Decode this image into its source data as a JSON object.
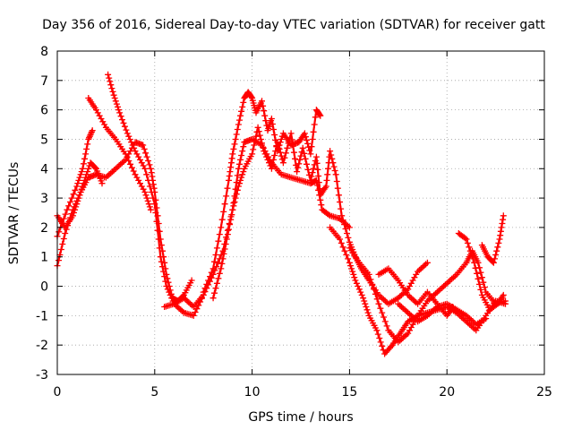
{
  "chart_data": {
    "type": "scatter",
    "title": "Day 356 of 2016, Sidereal Day-to-day VTEC variation (SDTVAR) for receiver gatt",
    "xlabel": "GPS time / hours",
    "ylabel": "SDTVAR / TECUs",
    "xlim": [
      0,
      25
    ],
    "ylim": [
      -3,
      8
    ],
    "xticks": [
      0,
      5,
      10,
      15,
      20,
      25
    ],
    "yticks": [
      -3,
      -2,
      -1,
      0,
      1,
      2,
      3,
      4,
      5,
      6,
      7,
      8
    ],
    "grid": true,
    "marker": "plus",
    "color": "#ff0000",
    "series": [
      {
        "name": "track-1",
        "points": [
          [
            0.0,
            1.7
          ],
          [
            0.5,
            2.6
          ],
          [
            1.0,
            3.4
          ],
          [
            1.3,
            4.0
          ],
          [
            1.6,
            5.0
          ],
          [
            1.8,
            5.3
          ]
        ]
      },
      {
        "name": "track-2",
        "points": [
          [
            1.6,
            6.4
          ],
          [
            2.0,
            6.0
          ],
          [
            2.5,
            5.4
          ],
          [
            3.0,
            5.0
          ],
          [
            3.5,
            4.5
          ],
          [
            4.0,
            3.8
          ],
          [
            4.5,
            3.2
          ],
          [
            4.8,
            2.6
          ]
        ]
      },
      {
        "name": "track-3",
        "points": [
          [
            2.6,
            7.2
          ],
          [
            2.9,
            6.5
          ],
          [
            3.2,
            5.9
          ],
          [
            3.6,
            5.2
          ],
          [
            4.0,
            4.6
          ],
          [
            4.5,
            4.0
          ],
          [
            5.0,
            2.8
          ],
          [
            5.3,
            1.0
          ],
          [
            5.6,
            0.0
          ],
          [
            6.0,
            -0.6
          ],
          [
            6.5,
            -0.9
          ],
          [
            7.0,
            -1.0
          ],
          [
            7.5,
            -0.3
          ]
        ]
      },
      {
        "name": "track-4",
        "points": [
          [
            0.0,
            0.7
          ],
          [
            0.4,
            1.8
          ],
          [
            0.8,
            2.6
          ],
          [
            1.2,
            3.2
          ],
          [
            1.6,
            3.7
          ],
          [
            2.0,
            3.8
          ],
          [
            2.5,
            3.7
          ],
          [
            3.0,
            4.0
          ],
          [
            3.5,
            4.3
          ],
          [
            4.0,
            4.9
          ],
          [
            4.4,
            4.8
          ],
          [
            4.8,
            4.0
          ],
          [
            5.0,
            3.2
          ],
          [
            5.3,
            1.6
          ],
          [
            5.6,
            0.4
          ],
          [
            5.9,
            -0.4
          ],
          [
            6.2,
            -0.5
          ],
          [
            6.5,
            -0.3
          ],
          [
            6.9,
            0.2
          ]
        ]
      },
      {
        "name": "track-5",
        "points": [
          [
            0.0,
            2.4
          ],
          [
            0.4,
            2.0
          ],
          [
            0.8,
            2.4
          ],
          [
            1.1,
            3.0
          ],
          [
            1.4,
            3.6
          ],
          [
            1.7,
            4.2
          ],
          [
            2.0,
            4.0
          ],
          [
            2.3,
            3.5
          ]
        ]
      },
      {
        "name": "track-6",
        "points": [
          [
            5.5,
            -0.7
          ],
          [
            6.0,
            -0.6
          ],
          [
            6.5,
            -0.4
          ],
          [
            7.0,
            -0.7
          ],
          [
            7.5,
            -0.3
          ],
          [
            8.0,
            0.4
          ],
          [
            8.5,
            1.2
          ],
          [
            9.0,
            2.6
          ],
          [
            9.3,
            4.0
          ],
          [
            9.6,
            4.9
          ],
          [
            10.0,
            5.0
          ],
          [
            10.5,
            4.8
          ],
          [
            11.0,
            4.2
          ],
          [
            11.5,
            3.8
          ],
          [
            12.0,
            3.7
          ],
          [
            12.5,
            3.6
          ],
          [
            13.0,
            3.5
          ],
          [
            13.3,
            3.6
          ],
          [
            13.6,
            2.6
          ],
          [
            14.0,
            2.4
          ],
          [
            14.5,
            2.3
          ],
          [
            15.0,
            2.0
          ]
        ]
      },
      {
        "name": "track-7",
        "points": [
          [
            7.5,
            -0.2
          ],
          [
            8.0,
            0.6
          ],
          [
            8.4,
            2.0
          ],
          [
            8.8,
            3.6
          ],
          [
            9.0,
            4.5
          ],
          [
            9.3,
            5.5
          ],
          [
            9.6,
            6.4
          ],
          [
            9.8,
            6.6
          ],
          [
            10.0,
            6.4
          ],
          [
            10.2,
            5.9
          ],
          [
            10.5,
            6.3
          ],
          [
            10.8,
            5.3
          ],
          [
            11.0,
            5.7
          ],
          [
            11.3,
            4.6
          ],
          [
            11.6,
            5.2
          ],
          [
            12.0,
            4.8
          ],
          [
            12.4,
            4.9
          ],
          [
            12.7,
            5.2
          ],
          [
            13.0,
            4.5
          ],
          [
            13.3,
            6.0
          ],
          [
            13.5,
            5.8
          ]
        ]
      },
      {
        "name": "track-8",
        "points": [
          [
            8.0,
            -0.4
          ],
          [
            8.4,
            0.6
          ],
          [
            8.7,
            1.6
          ],
          [
            9.0,
            2.6
          ],
          [
            9.3,
            3.4
          ],
          [
            9.6,
            4.0
          ],
          [
            10.0,
            4.5
          ],
          [
            10.3,
            5.4
          ],
          [
            10.6,
            4.6
          ],
          [
            11.0,
            4.0
          ],
          [
            11.3,
            4.9
          ],
          [
            11.6,
            4.2
          ],
          [
            12.0,
            5.2
          ],
          [
            12.3,
            3.9
          ],
          [
            12.6,
            4.7
          ],
          [
            13.0,
            3.6
          ],
          [
            13.3,
            4.4
          ],
          [
            13.5,
            3.1
          ],
          [
            13.8,
            3.4
          ],
          [
            14.0,
            4.6
          ],
          [
            14.3,
            3.8
          ],
          [
            14.6,
            2.4
          ],
          [
            15.0,
            1.5
          ],
          [
            15.3,
            1.0
          ],
          [
            15.6,
            0.6
          ],
          [
            16.0,
            0.2
          ],
          [
            16.5,
            -0.3
          ],
          [
            17.0,
            -0.6
          ],
          [
            17.5,
            -0.4
          ],
          [
            18.0,
            -0.1
          ],
          [
            18.5,
            0.5
          ],
          [
            19.0,
            0.8
          ]
        ]
      },
      {
        "name": "track-9",
        "points": [
          [
            14.0,
            2.0
          ],
          [
            14.5,
            1.6
          ],
          [
            15.0,
            0.8
          ],
          [
            15.3,
            0.2
          ],
          [
            15.7,
            -0.4
          ],
          [
            16.0,
            -1.0
          ],
          [
            16.4,
            -1.5
          ],
          [
            16.8,
            -2.3
          ],
          [
            17.2,
            -2.0
          ],
          [
            17.6,
            -1.6
          ],
          [
            18.0,
            -1.2
          ],
          [
            18.5,
            -1.0
          ],
          [
            19.0,
            -0.9
          ],
          [
            19.5,
            -0.8
          ],
          [
            20.0,
            -0.7
          ],
          [
            20.5,
            -0.9
          ],
          [
            21.0,
            -1.2
          ],
          [
            21.5,
            -1.5
          ],
          [
            22.0,
            -1.0
          ],
          [
            22.5,
            -0.5
          ],
          [
            23.0,
            -0.6
          ]
        ]
      },
      {
        "name": "track-10",
        "points": [
          [
            15.0,
            1.3
          ],
          [
            15.5,
            0.8
          ],
          [
            16.0,
            0.4
          ],
          [
            16.5,
            -0.6
          ],
          [
            17.0,
            -1.5
          ],
          [
            17.5,
            -1.9
          ],
          [
            18.0,
            -1.6
          ],
          [
            18.5,
            -1.0
          ],
          [
            19.0,
            -0.5
          ],
          [
            19.5,
            -0.2
          ],
          [
            20.0,
            0.1
          ],
          [
            20.5,
            0.4
          ],
          [
            21.0,
            0.8
          ],
          [
            21.3,
            1.2
          ],
          [
            21.6,
            0.8
          ],
          [
            22.0,
            -0.2
          ],
          [
            22.5,
            -0.6
          ],
          [
            23.0,
            -0.5
          ]
        ]
      },
      {
        "name": "track-11",
        "points": [
          [
            16.5,
            0.4
          ],
          [
            17.0,
            0.6
          ],
          [
            17.5,
            0.2
          ],
          [
            18.0,
            -0.3
          ],
          [
            18.5,
            -0.6
          ],
          [
            19.0,
            -0.2
          ],
          [
            19.5,
            -0.6
          ],
          [
            20.0,
            -1.0
          ],
          [
            20.3,
            -0.7
          ]
        ]
      },
      {
        "name": "track-12",
        "points": [
          [
            20.6,
            1.8
          ],
          [
            21.0,
            1.6
          ],
          [
            21.4,
            0.8
          ],
          [
            21.8,
            -0.3
          ],
          [
            22.2,
            -0.8
          ],
          [
            22.6,
            -0.6
          ],
          [
            22.9,
            -0.3
          ]
        ]
      },
      {
        "name": "track-13",
        "points": [
          [
            21.8,
            1.4
          ],
          [
            22.1,
            1.0
          ],
          [
            22.4,
            0.8
          ],
          [
            22.7,
            1.6
          ],
          [
            22.9,
            2.4
          ]
        ]
      },
      {
        "name": "track-14",
        "points": [
          [
            17.5,
            -0.6
          ],
          [
            18.0,
            -0.9
          ],
          [
            18.5,
            -1.2
          ],
          [
            19.0,
            -1.0
          ],
          [
            19.5,
            -0.7
          ],
          [
            20.0,
            -0.6
          ],
          [
            20.5,
            -0.8
          ],
          [
            21.0,
            -1.0
          ],
          [
            21.5,
            -1.3
          ],
          [
            22.0,
            -1.1
          ]
        ]
      }
    ]
  }
}
